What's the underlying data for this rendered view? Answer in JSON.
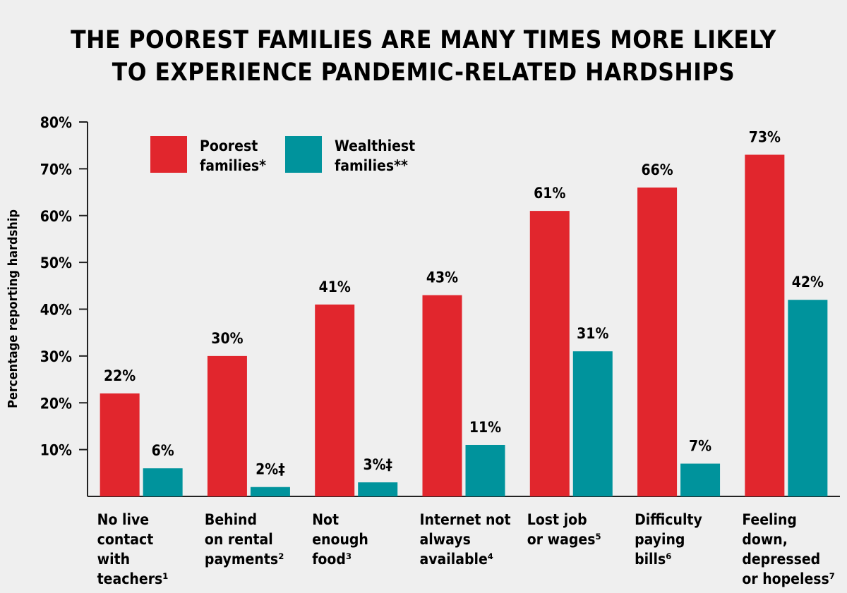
{
  "chart_data": {
    "type": "bar",
    "title_lines": [
      "THE POOREST FAMILIES ARE MANY TIMES MORE LIKELY",
      "TO EXPERIENCE PANDEMIC-RELATED HARDSHIPS"
    ],
    "ylabel": "Percentage reporting hardship",
    "xlabel": "",
    "ylim": [
      0,
      80
    ],
    "yticks": [
      10,
      20,
      30,
      40,
      50,
      60,
      70,
      80
    ],
    "ytick_labels": [
      "10%",
      "20%",
      "30%",
      "40%",
      "50%",
      "60%",
      "70%",
      "80%"
    ],
    "grid": false,
    "legend_position": "top-left",
    "categories": [
      {
        "lines": [
          "No live",
          "contact",
          "with",
          "teachers¹"
        ]
      },
      {
        "lines": [
          "Behind",
          "on rental",
          "payments²"
        ]
      },
      {
        "lines": [
          "Not",
          "enough",
          "food³"
        ]
      },
      {
        "lines": [
          "Internet not",
          "always",
          "available⁴"
        ]
      },
      {
        "lines": [
          "Lost job",
          "or wages⁵"
        ]
      },
      {
        "lines": [
          "Difficulty",
          "paying",
          "bills⁶"
        ]
      },
      {
        "lines": [
          "Feeling",
          "down,",
          "depressed",
          "or hopeless⁷"
        ]
      }
    ],
    "series": [
      {
        "name_lines": [
          "Poorest",
          "families*"
        ],
        "color": "#e1262d",
        "values": [
          22,
          30,
          41,
          43,
          61,
          66,
          73
        ],
        "labels": [
          "22%",
          "30%",
          "41%",
          "43%",
          "61%",
          "66%",
          "73%"
        ]
      },
      {
        "name_lines": [
          "Wealthiest",
          "families**"
        ],
        "color": "#00939c",
        "values": [
          6,
          2,
          3,
          11,
          31,
          7,
          42
        ],
        "labels": [
          "6%",
          "2%‡",
          "3%‡",
          "11%",
          "31%",
          "7%",
          "42%"
        ]
      }
    ]
  }
}
